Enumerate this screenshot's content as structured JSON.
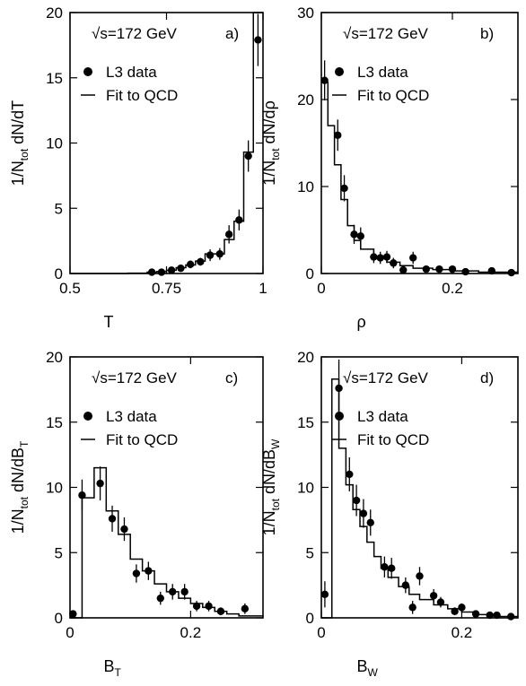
{
  "chart_data": [
    {
      "type": "scatter",
      "panel_label": "a)",
      "energy_label": "√s=172 GeV",
      "legend": [
        {
          "name": "L3 data",
          "marker": "point"
        },
        {
          "name": "Fit to QCD",
          "marker": "line"
        }
      ],
      "xlabel": {
        "base": "T",
        "sub": ""
      },
      "ylabel": {
        "prefix": "1/N",
        "sub": "tot",
        "suffix": " dN/dT",
        "suffix_sub": ""
      },
      "xlim": [
        0.5,
        1.0
      ],
      "ylim": [
        0,
        20
      ],
      "xticks": [
        0.5,
        0.75,
        1.0
      ],
      "xtick_labels": [
        "0.5",
        "0.75",
        "1"
      ],
      "yticks": [
        0,
        5,
        10,
        15,
        20
      ],
      "ytick_labels": [
        "0",
        "5",
        "10",
        "15",
        "20"
      ],
      "series": [
        {
          "role": "data",
          "x": [
            0.712,
            0.737,
            0.763,
            0.787,
            0.812,
            0.838,
            0.863,
            0.888,
            0.912,
            0.938,
            0.962,
            0.987
          ],
          "y": [
            0.1,
            0.1,
            0.25,
            0.4,
            0.7,
            0.9,
            1.4,
            1.5,
            3.0,
            4.1,
            9.0,
            17.9
          ],
          "err": [
            0.15,
            0.15,
            0.2,
            0.25,
            0.3,
            0.3,
            0.45,
            0.45,
            0.7,
            0.8,
            1.2,
            2.0
          ]
        },
        {
          "role": "fit",
          "edges": [
            0.5,
            0.65,
            0.7,
            0.725,
            0.75,
            0.775,
            0.8,
            0.825,
            0.85,
            0.875,
            0.9,
            0.925,
            0.95,
            0.975,
            1.0
          ],
          "values": [
            0.0,
            0.03,
            0.1,
            0.15,
            0.25,
            0.45,
            0.65,
            0.95,
            1.5,
            1.5,
            2.6,
            4.0,
            9.3,
            20.0
          ]
        }
      ]
    },
    {
      "type": "scatter",
      "panel_label": "b)",
      "energy_label": "√s=172 GeV",
      "legend": [
        {
          "name": "L3 data",
          "marker": "point"
        },
        {
          "name": "Fit to QCD",
          "marker": "line"
        }
      ],
      "xlabel": {
        "base": "ρ",
        "sub": ""
      },
      "ylabel": {
        "prefix": "1/N",
        "sub": "tot",
        "suffix": " dN/dρ",
        "suffix_sub": ""
      },
      "xlim": [
        0,
        0.3
      ],
      "ylim": [
        0,
        30
      ],
      "xticks": [
        0,
        0.2
      ],
      "xtick_labels": [
        "0",
        "0.2"
      ],
      "yticks": [
        0,
        10,
        20,
        30
      ],
      "ytick_labels": [
        "0",
        "10",
        "20",
        "30"
      ],
      "series": [
        {
          "role": "data",
          "x": [
            0.005,
            0.025,
            0.035,
            0.05,
            0.06,
            0.08,
            0.09,
            0.1,
            0.11,
            0.125,
            0.14,
            0.16,
            0.18,
            0.2,
            0.22,
            0.26,
            0.29
          ],
          "y": [
            22.2,
            15.9,
            9.8,
            4.5,
            4.3,
            1.9,
            1.8,
            1.9,
            1.2,
            0.4,
            1.8,
            0.5,
            0.5,
            0.5,
            0.2,
            0.3,
            0.1
          ],
          "err": [
            2.3,
            1.8,
            1.5,
            1.1,
            1.0,
            0.7,
            0.7,
            0.7,
            0.6,
            0.5,
            0.7,
            0.4,
            0.4,
            0.4,
            0.3,
            0.3,
            0.2
          ]
        },
        {
          "role": "fit",
          "edges": [
            0,
            0.01,
            0.02,
            0.03,
            0.04,
            0.05,
            0.06,
            0.08,
            0.1,
            0.12,
            0.14,
            0.17,
            0.2,
            0.24,
            0.3
          ],
          "values": [
            22.0,
            17.0,
            12.5,
            8.5,
            5.5,
            3.8,
            2.8,
            1.8,
            1.3,
            0.9,
            0.6,
            0.45,
            0.3,
            0.15
          ]
        }
      ]
    },
    {
      "type": "scatter",
      "panel_label": "c)",
      "energy_label": "√s=172 GeV",
      "legend": [
        {
          "name": "L3 data",
          "marker": "point"
        },
        {
          "name": "Fit to QCD",
          "marker": "line"
        }
      ],
      "xlabel": {
        "base": "B",
        "sub": "T"
      },
      "ylabel": {
        "prefix": "1/N",
        "sub": "tot",
        "suffix": " dN/dB",
        "suffix_sub": "T"
      },
      "xlim": [
        0,
        0.32
      ],
      "ylim": [
        0,
        20
      ],
      "xticks": [
        0,
        0.2
      ],
      "xtick_labels": [
        "0",
        "0.2"
      ],
      "yticks": [
        0,
        5,
        10,
        15,
        20
      ],
      "ytick_labels": [
        "0",
        "5",
        "10",
        "15",
        "20"
      ],
      "series": [
        {
          "role": "data",
          "x": [
            0.005,
            0.02,
            0.05,
            0.07,
            0.09,
            0.11,
            0.13,
            0.15,
            0.17,
            0.19,
            0.21,
            0.23,
            0.25,
            0.29
          ],
          "y": [
            0.3,
            9.4,
            10.3,
            7.6,
            6.8,
            3.4,
            3.6,
            1.5,
            2.0,
            2.0,
            0.9,
            0.9,
            0.5,
            0.7
          ],
          "err": [
            0.2,
            1.2,
            1.3,
            1.0,
            0.9,
            0.7,
            0.7,
            0.5,
            0.6,
            0.6,
            0.4,
            0.4,
            0.3,
            0.4
          ]
        },
        {
          "role": "fit",
          "edges": [
            0,
            0.01,
            0.02,
            0.04,
            0.06,
            0.08,
            0.1,
            0.12,
            0.14,
            0.16,
            0.18,
            0.2,
            0.22,
            0.24,
            0.26,
            0.28,
            0.32
          ],
          "values": [
            0.0,
            0.0,
            9.2,
            11.5,
            8.2,
            6.4,
            4.5,
            3.6,
            2.6,
            2.0,
            1.5,
            1.1,
            0.8,
            0.5,
            0.3,
            0.15
          ]
        }
      ]
    },
    {
      "type": "scatter",
      "panel_label": "d)",
      "energy_label": "√s=172 GeV",
      "legend": [
        {
          "name": "L3 data",
          "marker": "point"
        },
        {
          "name": "Fit to QCD",
          "marker": "line"
        }
      ],
      "xlabel": {
        "base": "B",
        "sub": "W"
      },
      "ylabel": {
        "prefix": "1/N",
        "sub": "tot",
        "suffix": " dN/dB",
        "suffix_sub": "W"
      },
      "xlim": [
        0,
        0.28
      ],
      "ylim": [
        0,
        20
      ],
      "xticks": [
        0,
        0.2
      ],
      "xtick_labels": [
        "0",
        "0.2"
      ],
      "yticks": [
        0,
        5,
        10,
        15,
        20
      ],
      "ytick_labels": [
        "0",
        "5",
        "10",
        "15",
        "20"
      ],
      "series": [
        {
          "role": "data",
          "x": [
            0.005,
            0.025,
            0.04,
            0.05,
            0.06,
            0.07,
            0.09,
            0.1,
            0.12,
            0.13,
            0.14,
            0.16,
            0.17,
            0.19,
            0.2,
            0.22,
            0.24,
            0.25,
            0.27
          ],
          "y": [
            1.8,
            17.6,
            11.0,
            9.0,
            8.0,
            7.3,
            3.9,
            3.8,
            2.5,
            0.8,
            3.2,
            1.7,
            1.2,
            0.5,
            0.8,
            0.3,
            0.2,
            0.2,
            0.1
          ],
          "err": [
            1.0,
            2.2,
            1.3,
            1.2,
            1.1,
            1.0,
            0.8,
            0.8,
            0.6,
            0.5,
            0.7,
            0.5,
            0.4,
            0.3,
            0.3,
            0.2,
            0.2,
            0.2,
            0.15
          ]
        },
        {
          "role": "fit",
          "edges": [
            0,
            0.015,
            0.025,
            0.035,
            0.045,
            0.055,
            0.065,
            0.075,
            0.085,
            0.095,
            0.11,
            0.125,
            0.14,
            0.16,
            0.18,
            0.2,
            0.22,
            0.25,
            0.28
          ],
          "values": [
            0.0,
            18.3,
            13.0,
            10.2,
            8.3,
            7.0,
            5.8,
            4.7,
            3.8,
            3.1,
            2.4,
            1.8,
            1.4,
            1.0,
            0.7,
            0.45,
            0.25,
            0.1
          ]
        }
      ]
    }
  ]
}
